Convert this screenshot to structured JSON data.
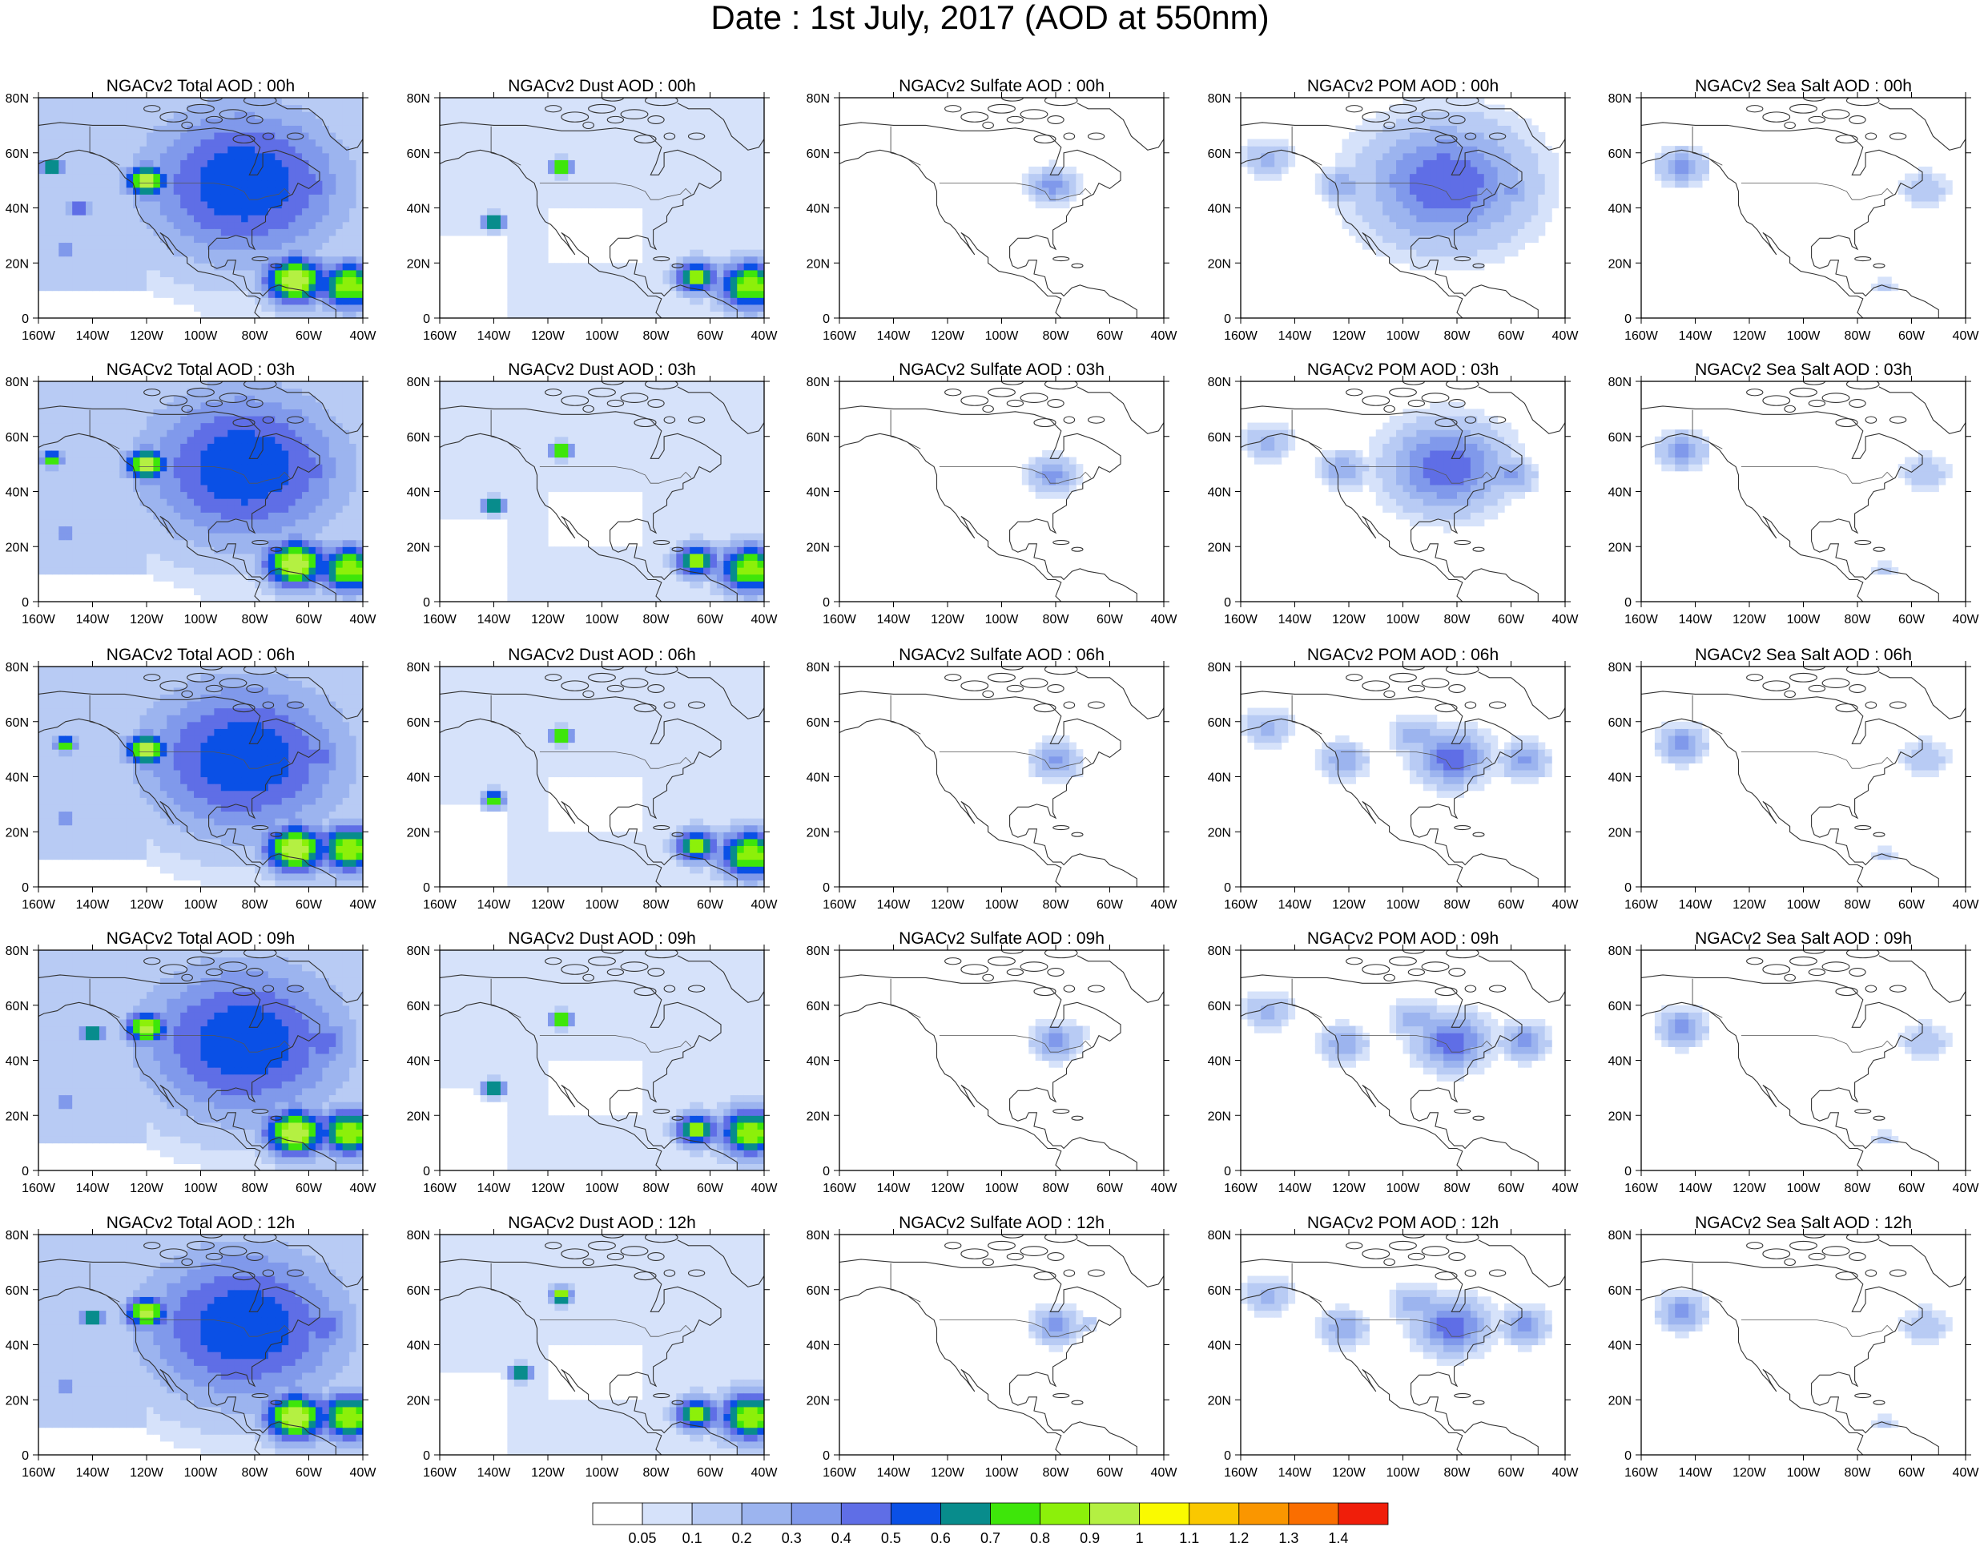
{
  "figure": {
    "title": "Date : 1st July, 2017 (AOD at 550nm)"
  },
  "chart_data": {
    "type": "heatmap",
    "map_region": "North America",
    "xlim": [
      -160,
      -40
    ],
    "ylim": [
      0,
      80
    ],
    "x_ticks": [
      "160W",
      "140W",
      "120W",
      "100W",
      "80W",
      "60W",
      "40W"
    ],
    "y_ticks": [
      "0",
      "20N",
      "40N",
      "60N",
      "80N"
    ],
    "columns": [
      "Total",
      "Dust",
      "Sulfate",
      "POM",
      "Sea Salt"
    ],
    "rows": [
      "00h",
      "03h",
      "06h",
      "09h",
      "12h"
    ],
    "panel_titles": [
      [
        "NGACv2 Total AOD : 00h",
        "NGACv2 Dust AOD : 00h",
        "NGACv2 Sulfate AOD : 00h",
        "NGACv2 POM AOD : 00h",
        "NGACv2 Sea Salt AOD : 00h"
      ],
      [
        "NGACv2 Total AOD : 03h",
        "NGACv2 Dust AOD : 03h",
        "NGACv2 Sulfate AOD : 03h",
        "NGACv2 POM AOD : 03h",
        "NGACv2 Sea Salt AOD : 03h"
      ],
      [
        "NGACv2 Total AOD : 06h",
        "NGACv2 Dust AOD : 06h",
        "NGACv2 Sulfate AOD : 06h",
        "NGACv2 POM AOD : 06h",
        "NGACv2 Sea Salt AOD : 06h"
      ],
      [
        "NGACv2 Total AOD : 09h",
        "NGACv2 Dust AOD : 09h",
        "NGACv2 Sulfate AOD : 09h",
        "NGACv2 POM AOD : 09h",
        "NGACv2 Sea Salt  AOD : 09h"
      ],
      [
        "NGACv2 Total AOD  : 12h",
        "NGACv2 Dust AOD : 12h",
        "NGACv2 Sulfate AOD : 12h",
        "NGACv2 POM  AOD : 12h",
        "NGACv2 Sea Salt  AOD : 12h"
      ]
    ],
    "colorbar": {
      "levels": [
        "0.05",
        "0.1",
        "0.2",
        "0.3",
        "0.4",
        "0.5",
        "0.6",
        "0.7",
        "0.8",
        "0.9",
        "1",
        "1.1",
        "1.2",
        "1.3",
        "1.4"
      ],
      "colors": [
        "#ffffff",
        "#d6e2fa",
        "#b8cbf4",
        "#9cb4ef",
        "#8099eb",
        "#5f6ee6",
        "#0a50e6",
        "#088c8c",
        "#3ee60a",
        "#8cf00a",
        "#b4f042",
        "#fafa00",
        "#fac800",
        "#fa9600",
        "#fa6e00",
        "#f01e0a"
      ]
    },
    "fields": {
      "Total": [
        [
          [
            -120,
            50,
            2,
            1.0
          ],
          [
            -155,
            55,
            1,
            0.9
          ],
          [
            -90,
            55,
            1,
            0.7
          ],
          [
            -84,
            49,
            10,
            0.6
          ],
          [
            -65,
            14,
            3,
            1.0
          ],
          [
            -45,
            12,
            3,
            0.9
          ],
          [
            -150,
            25,
            1,
            0.5
          ],
          [
            -145,
            40,
            1,
            0.6
          ],
          [
            -58,
            47,
            2,
            0.5
          ]
        ],
        [
          [
            -120,
            50,
            2,
            1.0
          ],
          [
            -155,
            52,
            1,
            0.9
          ],
          [
            -90,
            55,
            1,
            0.7
          ],
          [
            -84,
            49,
            10,
            0.6
          ],
          [
            -65,
            14,
            3,
            1.0
          ],
          [
            -45,
            12,
            3,
            0.9
          ],
          [
            -150,
            25,
            1,
            0.5
          ],
          [
            -58,
            47,
            2,
            0.5
          ]
        ],
        [
          [
            -120,
            50,
            2,
            1.0
          ],
          [
            -150,
            52,
            1,
            0.9
          ],
          [
            -90,
            55,
            1,
            0.7
          ],
          [
            -84,
            47,
            10,
            0.6
          ],
          [
            -65,
            14,
            3,
            1.0
          ],
          [
            -45,
            14,
            3,
            0.9
          ],
          [
            -150,
            25,
            1,
            0.5
          ],
          [
            -55,
            47,
            2,
            0.5
          ]
        ],
        [
          [
            -120,
            52,
            2,
            1.0
          ],
          [
            -140,
            50,
            1,
            0.9
          ],
          [
            -90,
            55,
            1,
            0.7
          ],
          [
            -84,
            47,
            10,
            0.6
          ],
          [
            -65,
            14,
            3,
            1.0
          ],
          [
            -45,
            14,
            3,
            0.9
          ],
          [
            -150,
            25,
            1,
            0.5
          ],
          [
            -55,
            47,
            3,
            0.5
          ],
          [
            -124,
            48,
            7,
            0.12
          ]
        ],
        [
          [
            -120,
            52,
            2,
            1.0
          ],
          [
            -140,
            50,
            1,
            0.9
          ],
          [
            -90,
            55,
            1,
            0.7
          ],
          [
            -84,
            47,
            10,
            0.6
          ],
          [
            -65,
            14,
            3,
            1.0
          ],
          [
            -45,
            14,
            3,
            0.9
          ],
          [
            -150,
            25,
            1,
            0.5
          ],
          [
            -55,
            47,
            3,
            0.5
          ],
          [
            -124,
            48,
            7,
            0.12
          ]
        ]
      ],
      "Dust": [
        [
          [
            -115,
            55,
            1,
            1.0
          ],
          [
            -140,
            35,
            1,
            0.9
          ],
          [
            -65,
            15,
            2,
            0.9
          ],
          [
            -45,
            12,
            3,
            0.9
          ]
        ],
        [
          [
            -115,
            55,
            1,
            1.0
          ],
          [
            -140,
            35,
            1,
            0.9
          ],
          [
            -65,
            15,
            2,
            0.9
          ],
          [
            -45,
            12,
            3,
            0.9
          ]
        ],
        [
          [
            -115,
            55,
            1,
            1.0
          ],
          [
            -140,
            32,
            1,
            0.9
          ],
          [
            -65,
            15,
            2,
            0.9
          ],
          [
            -45,
            12,
            3,
            0.9
          ]
        ],
        [
          [
            -115,
            55,
            1,
            1.0
          ],
          [
            -140,
            30,
            1,
            0.9
          ],
          [
            -65,
            15,
            2,
            0.9
          ],
          [
            -45,
            14,
            3,
            0.9
          ]
        ],
        [
          [
            -115,
            58,
            1,
            1.0
          ],
          [
            -130,
            30,
            1,
            0.9
          ],
          [
            -65,
            15,
            2,
            0.9
          ],
          [
            -45,
            14,
            3,
            0.9
          ]
        ]
      ],
      "Sulfate": [
        [
          [
            -81,
            48,
            2,
            0.35
          ]
        ],
        [
          [
            -81,
            46,
            2,
            0.35
          ]
        ],
        [
          [
            -80,
            46,
            2,
            0.35
          ]
        ],
        [
          [
            -80,
            47,
            2,
            0.35
          ],
          [
            -72,
            50,
            1,
            0.15
          ]
        ],
        [
          [
            -80,
            47,
            2,
            0.35
          ],
          [
            -68,
            48,
            1,
            0.15
          ]
        ]
      ],
      "POM": [
        [
          [
            -84,
            49,
            7,
            0.5
          ],
          [
            -60,
            46,
            2,
            0.35
          ],
          [
            -95,
            57,
            2,
            0.3
          ],
          [
            -122,
            48,
            2,
            0.3
          ],
          [
            -150,
            58,
            2,
            0.25
          ]
        ],
        [
          [
            -84,
            49,
            5,
            0.5
          ],
          [
            -60,
            46,
            2,
            0.35
          ],
          [
            -95,
            57,
            2,
            0.3
          ],
          [
            -122,
            48,
            2,
            0.3
          ],
          [
            -150,
            58,
            2,
            0.25
          ]
        ],
        [
          [
            -82,
            47,
            3,
            0.5
          ],
          [
            -55,
            46,
            2,
            0.35
          ],
          [
            -95,
            55,
            2,
            0.3
          ],
          [
            -122,
            46,
            2,
            0.3
          ],
          [
            -150,
            58,
            2,
            0.25
          ]
        ],
        [
          [
            -82,
            47,
            3,
            0.5
          ],
          [
            -55,
            47,
            2,
            0.35
          ],
          [
            -95,
            55,
            2,
            0.3
          ],
          [
            -122,
            46,
            2,
            0.3
          ],
          [
            -150,
            58,
            2,
            0.25
          ]
        ],
        [
          [
            -82,
            47,
            3,
            0.5
          ],
          [
            -55,
            47,
            2,
            0.35
          ],
          [
            -95,
            55,
            2,
            0.3
          ],
          [
            -122,
            46,
            2,
            0.3
          ],
          [
            -150,
            58,
            2,
            0.25
          ]
        ]
      ],
      "Sea Salt": [
        [
          [
            -145,
            55,
            2,
            0.35
          ],
          [
            -55,
            47,
            2,
            0.2
          ],
          [
            -70,
            12,
            1,
            0.15
          ]
        ],
        [
          [
            -145,
            55,
            2,
            0.35
          ],
          [
            -55,
            47,
            2,
            0.2
          ],
          [
            -70,
            12,
            1,
            0.15
          ]
        ],
        [
          [
            -145,
            52,
            2,
            0.35
          ],
          [
            -55,
            47,
            2,
            0.2
          ],
          [
            -70,
            12,
            1,
            0.15
          ]
        ],
        [
          [
            -145,
            52,
            2,
            0.35
          ],
          [
            -55,
            47,
            2,
            0.2
          ],
          [
            -70,
            12,
            1,
            0.15
          ]
        ],
        [
          [
            -145,
            52,
            2,
            0.35
          ],
          [
            -55,
            47,
            2,
            0.2
          ],
          [
            -70,
            12,
            1,
            0.15
          ]
        ]
      ]
    }
  }
}
